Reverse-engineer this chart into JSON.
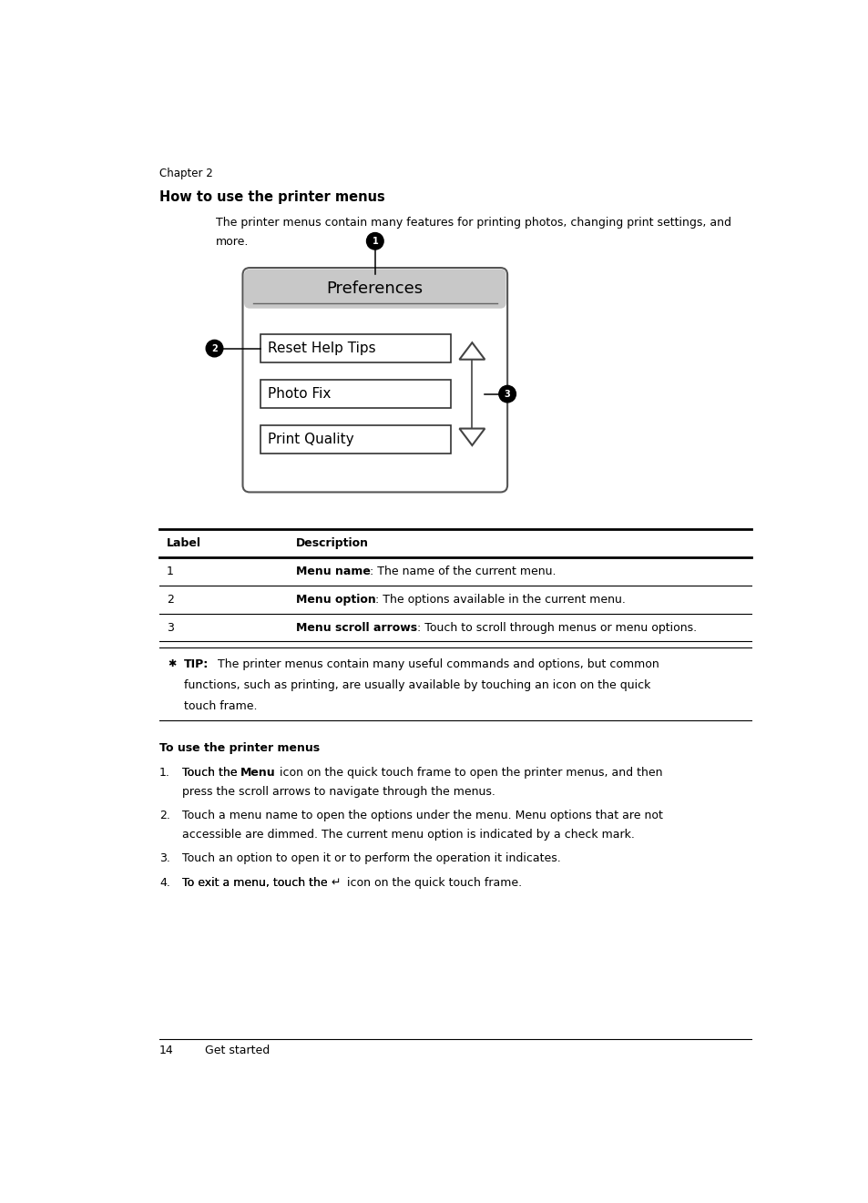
{
  "page_width": 9.54,
  "page_height": 13.21,
  "bg_color": "#ffffff",
  "chapter_text": "Chapter 2",
  "section_title": "How to use the printer menus",
  "intro_line1": "The printer menus contain many features for printing photos, changing print settings, and",
  "intro_line2": "more.",
  "pref_header_text": "Preferences",
  "menu_items": [
    "Reset Help Tips",
    "Photo Fix",
    "Print Quality"
  ],
  "table_rows": [
    [
      "Label",
      "Description",
      "",
      ""
    ],
    [
      "1",
      "Menu name",
      ": The name of the current menu.",
      ""
    ],
    [
      "2",
      "Menu option",
      ": The options available in the current menu.",
      ""
    ],
    [
      "3",
      "Menu scroll arrows",
      ": Touch to scroll through menus or menu options.",
      ""
    ]
  ],
  "tip_bold": "TIP:",
  "tip_line1": "  The printer menus contain many useful commands and options, but common",
  "tip_line2": "functions, such as printing, are usually available by touching an icon on the quick",
  "tip_line3": "touch frame.",
  "subsection_title": "To use the printer menus",
  "step1_pre": "Touch the ",
  "step1_bold": "Menu",
  "step1_post": " icon on the quick touch frame to open the printer menus, and then",
  "step1_line2": "press the scroll arrows to navigate through the menus.",
  "step2_line1": "Touch a menu name to open the options under the menu. Menu options that are not",
  "step2_line2": "accessible are dimmed. The current menu option is indicated by a check mark.",
  "step3": "Touch an option to open it or to perform the operation it indicates.",
  "step4_pre": "To exit a menu, touch the ",
  "step4_post": " icon on the quick touch frame.",
  "footer_page": "14",
  "footer_text": "Get started"
}
